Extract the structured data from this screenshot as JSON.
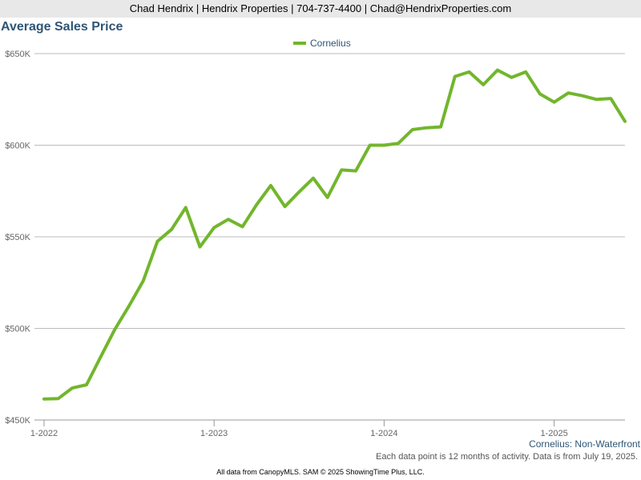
{
  "header": {
    "contact_line": "Chad Hendrix | Hendrix Properties | 704-737-4400 | Chad@HendrixProperties.com"
  },
  "footer": {
    "subtitle": "Cornelius: Non-Waterfront",
    "note": "Each data point is 12 months of activity. Data is from July 19, 2025.",
    "credit": "All data from CanopyMLS. SAM © 2025 ShowingTime Plus, LLC."
  },
  "colors": {
    "series": "#72b62c",
    "title": "#2e5575",
    "grid": "#bbbbbb"
  },
  "chart_data": {
    "type": "line",
    "title": "Average Sales Price",
    "xlabel": "",
    "ylabel": "",
    "ylim": [
      450000,
      650000
    ],
    "yticks": [
      {
        "value": 450000,
        "label": "$450K"
      },
      {
        "value": 500000,
        "label": "$500K"
      },
      {
        "value": 550000,
        "label": "$550K"
      },
      {
        "value": 600000,
        "label": "$600K"
      },
      {
        "value": 650000,
        "label": "$650K"
      }
    ],
    "xticks": [
      {
        "value": "2022-01",
        "label": "1-2022"
      },
      {
        "value": "2023-01",
        "label": "1-2023"
      },
      {
        "value": "2024-01",
        "label": "1-2024"
      },
      {
        "value": "2025-01",
        "label": "1-2025"
      }
    ],
    "xlim": [
      "2022-01",
      "2025-06"
    ],
    "grid": true,
    "legend": "top-center",
    "x": [
      "2022-01",
      "2022-02",
      "2022-03",
      "2022-04",
      "2022-05",
      "2022-06",
      "2022-07",
      "2022-08",
      "2022-09",
      "2022-10",
      "2022-11",
      "2022-12",
      "2023-01",
      "2023-02",
      "2023-03",
      "2023-04",
      "2023-05",
      "2023-06",
      "2023-07",
      "2023-08",
      "2023-09",
      "2023-10",
      "2023-11",
      "2023-12",
      "2024-01",
      "2024-02",
      "2024-03",
      "2024-04",
      "2024-05",
      "2024-06",
      "2024-07",
      "2024-08",
      "2024-09",
      "2024-10",
      "2024-11",
      "2024-12",
      "2025-01",
      "2025-02",
      "2025-03",
      "2025-04",
      "2025-05",
      "2025-06"
    ],
    "series": [
      {
        "name": "Cornelius",
        "values": [
          461500,
          461700,
          467500,
          469200,
          484500,
          499500,
          512300,
          526000,
          547500,
          554000,
          566000,
          544500,
          555000,
          559500,
          555500,
          567500,
          578000,
          566500,
          574500,
          582000,
          571500,
          586500,
          586000,
          600000,
          600000,
          601000,
          608500,
          609500,
          610000,
          637500,
          640000,
          633000,
          641000,
          637000,
          640000,
          628000,
          623500,
          628500,
          627000,
          625000,
          625500,
          613000
        ]
      }
    ]
  }
}
